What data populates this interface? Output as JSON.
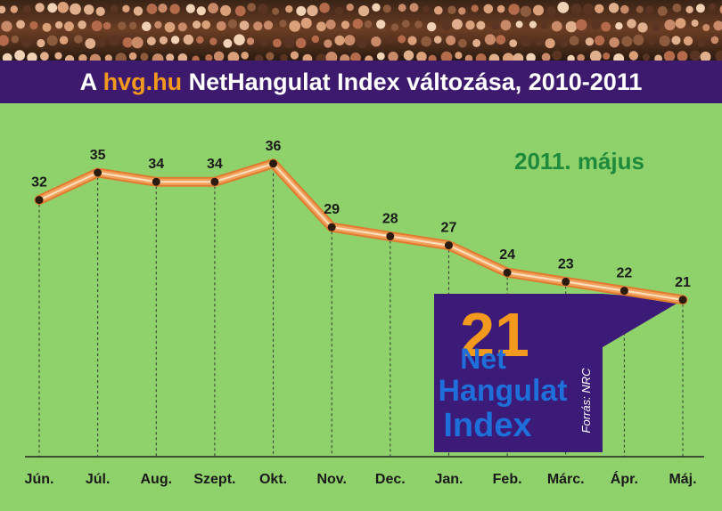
{
  "title": {
    "prefix": "A ",
    "brand": "hvg.hu",
    "rest": " NetHangulat Index változása, 2010-2011"
  },
  "date_label": "2011. május",
  "badge": {
    "number": "21",
    "line1": "Net",
    "line2": "Hangulat",
    "line3": "Index",
    "source": "Forrás: NRC"
  },
  "colors": {
    "background": "#8fd16a",
    "title_bar": "#3d1a6e",
    "brand": "#f39a1e",
    "line": "#f2a25c",
    "date_label": "#1e8a3c",
    "badge_bg": "#3b1a78",
    "badge_number": "#f39a1e",
    "badge_text": "#1e6fd9"
  },
  "chart_data": {
    "type": "line",
    "title": "A hvg.hu NetHangulat Index változása, 2010-2011",
    "categories": [
      "Jún.",
      "Júl.",
      "Aug.",
      "Szept.",
      "Okt.",
      "Nov.",
      "Dec.",
      "Jan.",
      "Feb.",
      "Márc.",
      "Ápr.",
      "Máj."
    ],
    "series": [
      {
        "values": [
          32,
          35,
          34,
          34,
          36,
          29,
          28,
          27,
          24,
          23,
          22,
          21
        ]
      }
    ],
    "ylim": [
      15,
      40
    ],
    "data_labels": true,
    "grid": false
  }
}
